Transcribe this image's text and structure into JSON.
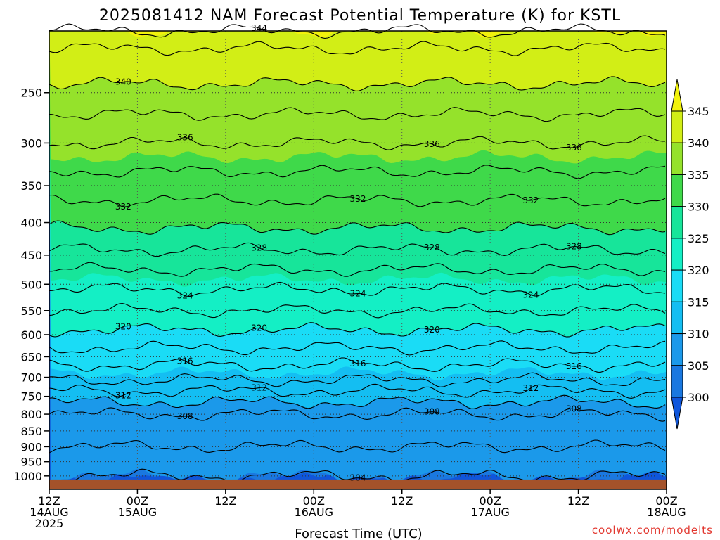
{
  "chart_data": {
    "type": "heatmap",
    "title": "2025081412 NAM Forecast Potential Temperature (K) for KSTL",
    "xlabel": "Forecast Time (UTC)",
    "ylabel": "",
    "credit": "coolwx.com/modelts",
    "x_ticks": [
      {
        "hour": 0,
        "lines": [
          "12Z",
          "14AUG",
          "2025"
        ]
      },
      {
        "hour": 12,
        "lines": [
          "00Z",
          "15AUG"
        ]
      },
      {
        "hour": 24,
        "lines": [
          "12Z"
        ]
      },
      {
        "hour": 36,
        "lines": [
          "00Z",
          "16AUG"
        ]
      },
      {
        "hour": 48,
        "lines": [
          "12Z"
        ]
      },
      {
        "hour": 60,
        "lines": [
          "00Z",
          "17AUG"
        ]
      },
      {
        "hour": 72,
        "lines": [
          "12Z"
        ]
      },
      {
        "hour": 84,
        "lines": [
          "00Z",
          "18AUG"
        ]
      }
    ],
    "xlim": [
      0,
      84
    ],
    "y_ticks": [
      250,
      300,
      350,
      400,
      450,
      500,
      550,
      600,
      650,
      700,
      750,
      800,
      850,
      900,
      950,
      1000
    ],
    "y_scale": "log-pressure",
    "ylim": [
      1050,
      200
    ],
    "grid": true,
    "colorbar": {
      "levels": [
        300,
        305,
        310,
        315,
        320,
        325,
        330,
        335,
        340,
        345
      ],
      "labels": [
        "300",
        "305",
        "310",
        "315",
        "320",
        "325",
        "330",
        "335",
        "340",
        "345"
      ],
      "colors": [
        "#0f56dc",
        "#1a78e0",
        "#1b99ea",
        "#14bef2",
        "#1adcf6",
        "#14efc5",
        "#17e59a",
        "#3fd94a",
        "#95e22b",
        "#d2ee16",
        "#f2f20c"
      ]
    },
    "contour_label_values": [
      "340",
      "344",
      "336",
      "336",
      "336",
      "332",
      "332",
      "332",
      "328",
      "328",
      "328",
      "324",
      "324",
      "324",
      "320",
      "320",
      "320",
      "316",
      "316",
      "316",
      "312",
      "312",
      "312",
      "308",
      "308",
      "308",
      "304"
    ],
    "theta_profile": [
      {
        "p": 1000,
        "theta": 305
      },
      {
        "p": 950,
        "theta": 305.5
      },
      {
        "p": 900,
        "theta": 306
      },
      {
        "p": 850,
        "theta": 306.5
      },
      {
        "p": 800,
        "theta": 308
      },
      {
        "p": 750,
        "theta": 311
      },
      {
        "p": 700,
        "theta": 314.5
      },
      {
        "p": 650,
        "theta": 317
      },
      {
        "p": 600,
        "theta": 319.5
      },
      {
        "p": 550,
        "theta": 322
      },
      {
        "p": 500,
        "theta": 324.5
      },
      {
        "p": 450,
        "theta": 327.5
      },
      {
        "p": 400,
        "theta": 330.5
      },
      {
        "p": 350,
        "theta": 333
      },
      {
        "p": 300,
        "theta": 336
      },
      {
        "p": 250,
        "theta": 339.5
      },
      {
        "p": 200,
        "theta": 343
      }
    ],
    "surface_color": "#a4522a"
  }
}
